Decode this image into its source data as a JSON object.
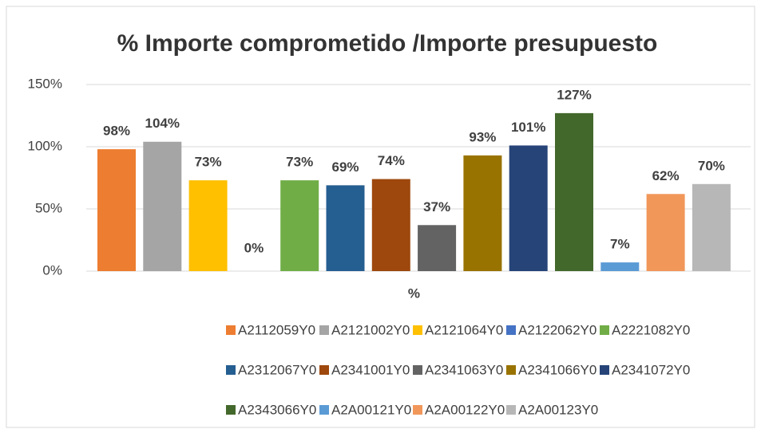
{
  "chart_data": {
    "type": "bar",
    "title": "% Importe comprometido /Importe presupuesto",
    "categories": [
      "%"
    ],
    "series": [
      {
        "name": "A2112059Y0",
        "color": "#ED7D31",
        "values": [
          98
        ],
        "value_labels": [
          "98%"
        ]
      },
      {
        "name": "A2121002Y0",
        "color": "#A5A5A5",
        "values": [
          104
        ],
        "value_labels": [
          "104%"
        ]
      },
      {
        "name": "A2121064Y0",
        "color": "#FFC000",
        "values": [
          73
        ],
        "value_labels": [
          "73%"
        ]
      },
      {
        "name": "A2122062Y0",
        "color": "#4472C4",
        "values": [
          0
        ],
        "value_labels": [
          "0%"
        ]
      },
      {
        "name": "A2221082Y0",
        "color": "#70AD47",
        "values": [
          73
        ],
        "value_labels": [
          "73%"
        ]
      },
      {
        "name": "A2312067Y0",
        "color": "#255E91",
        "values": [
          69
        ],
        "value_labels": [
          "69%"
        ]
      },
      {
        "name": "A2341001Y0",
        "color": "#9E480E",
        "values": [
          74
        ],
        "value_labels": [
          "74%"
        ]
      },
      {
        "name": "A2341063Y0",
        "color": "#636363",
        "values": [
          37
        ],
        "value_labels": [
          "37%"
        ]
      },
      {
        "name": "A2341066Y0",
        "color": "#997300",
        "values": [
          93
        ],
        "value_labels": [
          "93%"
        ]
      },
      {
        "name": "A2341072Y0",
        "color": "#264478",
        "values": [
          101
        ],
        "value_labels": [
          "101%"
        ]
      },
      {
        "name": "A2343066Y0",
        "color": "#43682B",
        "values": [
          127
        ],
        "value_labels": [
          "127%"
        ]
      },
      {
        "name": "A2A00121Y0",
        "color": "#5B9BD5",
        "values": [
          7
        ],
        "value_labels": [
          "7%"
        ]
      },
      {
        "name": "A2A00122Y0",
        "color": "#F1975A",
        "values": [
          62
        ],
        "value_labels": [
          "62%"
        ]
      },
      {
        "name": "A2A00123Y0",
        "color": "#B7B7B7",
        "values": [
          70
        ],
        "value_labels": [
          "70%"
        ]
      }
    ],
    "ylim": [
      0,
      150
    ],
    "yticks": [
      {
        "value": 0,
        "label": "0%"
      },
      {
        "value": 50,
        "label": "50%"
      },
      {
        "value": 100,
        "label": "100%"
      },
      {
        "value": 150,
        "label": "150%"
      }
    ],
    "grid": true
  }
}
